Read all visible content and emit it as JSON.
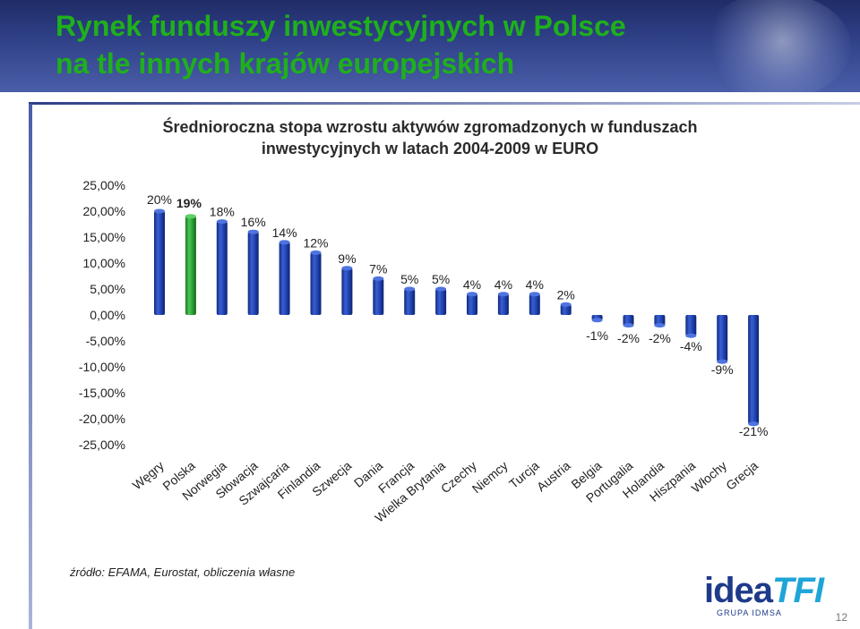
{
  "slide": {
    "title_line1": "Rynek funduszy inwestycyjnych w Polsce",
    "title_line2": "na tle innych krajów europejskich",
    "source": "źródło: EFAMA, Eurostat, obliczenia własne",
    "page_number": "12",
    "logo": {
      "part1": "idea",
      "part2": "TFI",
      "sub": "GRUPA IDMSA"
    },
    "colors": {
      "title": "#1fb01c",
      "bar_blue": "#1f3fa8",
      "bar_highlight": "#2fa83a",
      "header": "#2e3f86"
    }
  },
  "chart_data": {
    "type": "bar",
    "title_line1": "Średnioroczna stopa wzrostu aktywów zgromadzonych w funduszach",
    "title_line2": "inwestycyjnych w latach 2004-2009 w EURO",
    "categories": [
      "Węgry",
      "Polska",
      "Norwegia",
      "Słowacja",
      "Szwajcaria",
      "Finlandia",
      "Szwecja",
      "Dania",
      "Francja",
      "Wielka Brytania",
      "Czechy",
      "Niemcy",
      "Turcja",
      "Austria",
      "Belgia",
      "Portugalia",
      "Holandia",
      "Hiszpania",
      "Włochy",
      "Grecja"
    ],
    "values": [
      20,
      19,
      18,
      16,
      14,
      12,
      9,
      7,
      5,
      5,
      4,
      4,
      4,
      2,
      -1,
      -2,
      -2,
      -4,
      -9,
      -21
    ],
    "data_labels": [
      "20%",
      "19%",
      "18%",
      "16%",
      "14%",
      "12%",
      "9%",
      "7%",
      "5%",
      "5%",
      "4%",
      "4%",
      "4%",
      "2%",
      "-1%",
      "-2%",
      "-2%",
      "-4%",
      "-9%",
      "-21%"
    ],
    "highlight_category": "Polska",
    "ylim": [
      -25,
      25
    ],
    "yticks": [
      25,
      20,
      15,
      10,
      5,
      0,
      -5,
      -10,
      -15,
      -20,
      -25
    ],
    "ytick_labels": [
      "25,00%",
      "20,00%",
      "15,00%",
      "10,00%",
      "5,00%",
      "0,00%",
      "-5,00%",
      "-10,00%",
      "-15,00%",
      "-20,00%",
      "-25,00%"
    ],
    "grid": false,
    "legend": "none"
  }
}
